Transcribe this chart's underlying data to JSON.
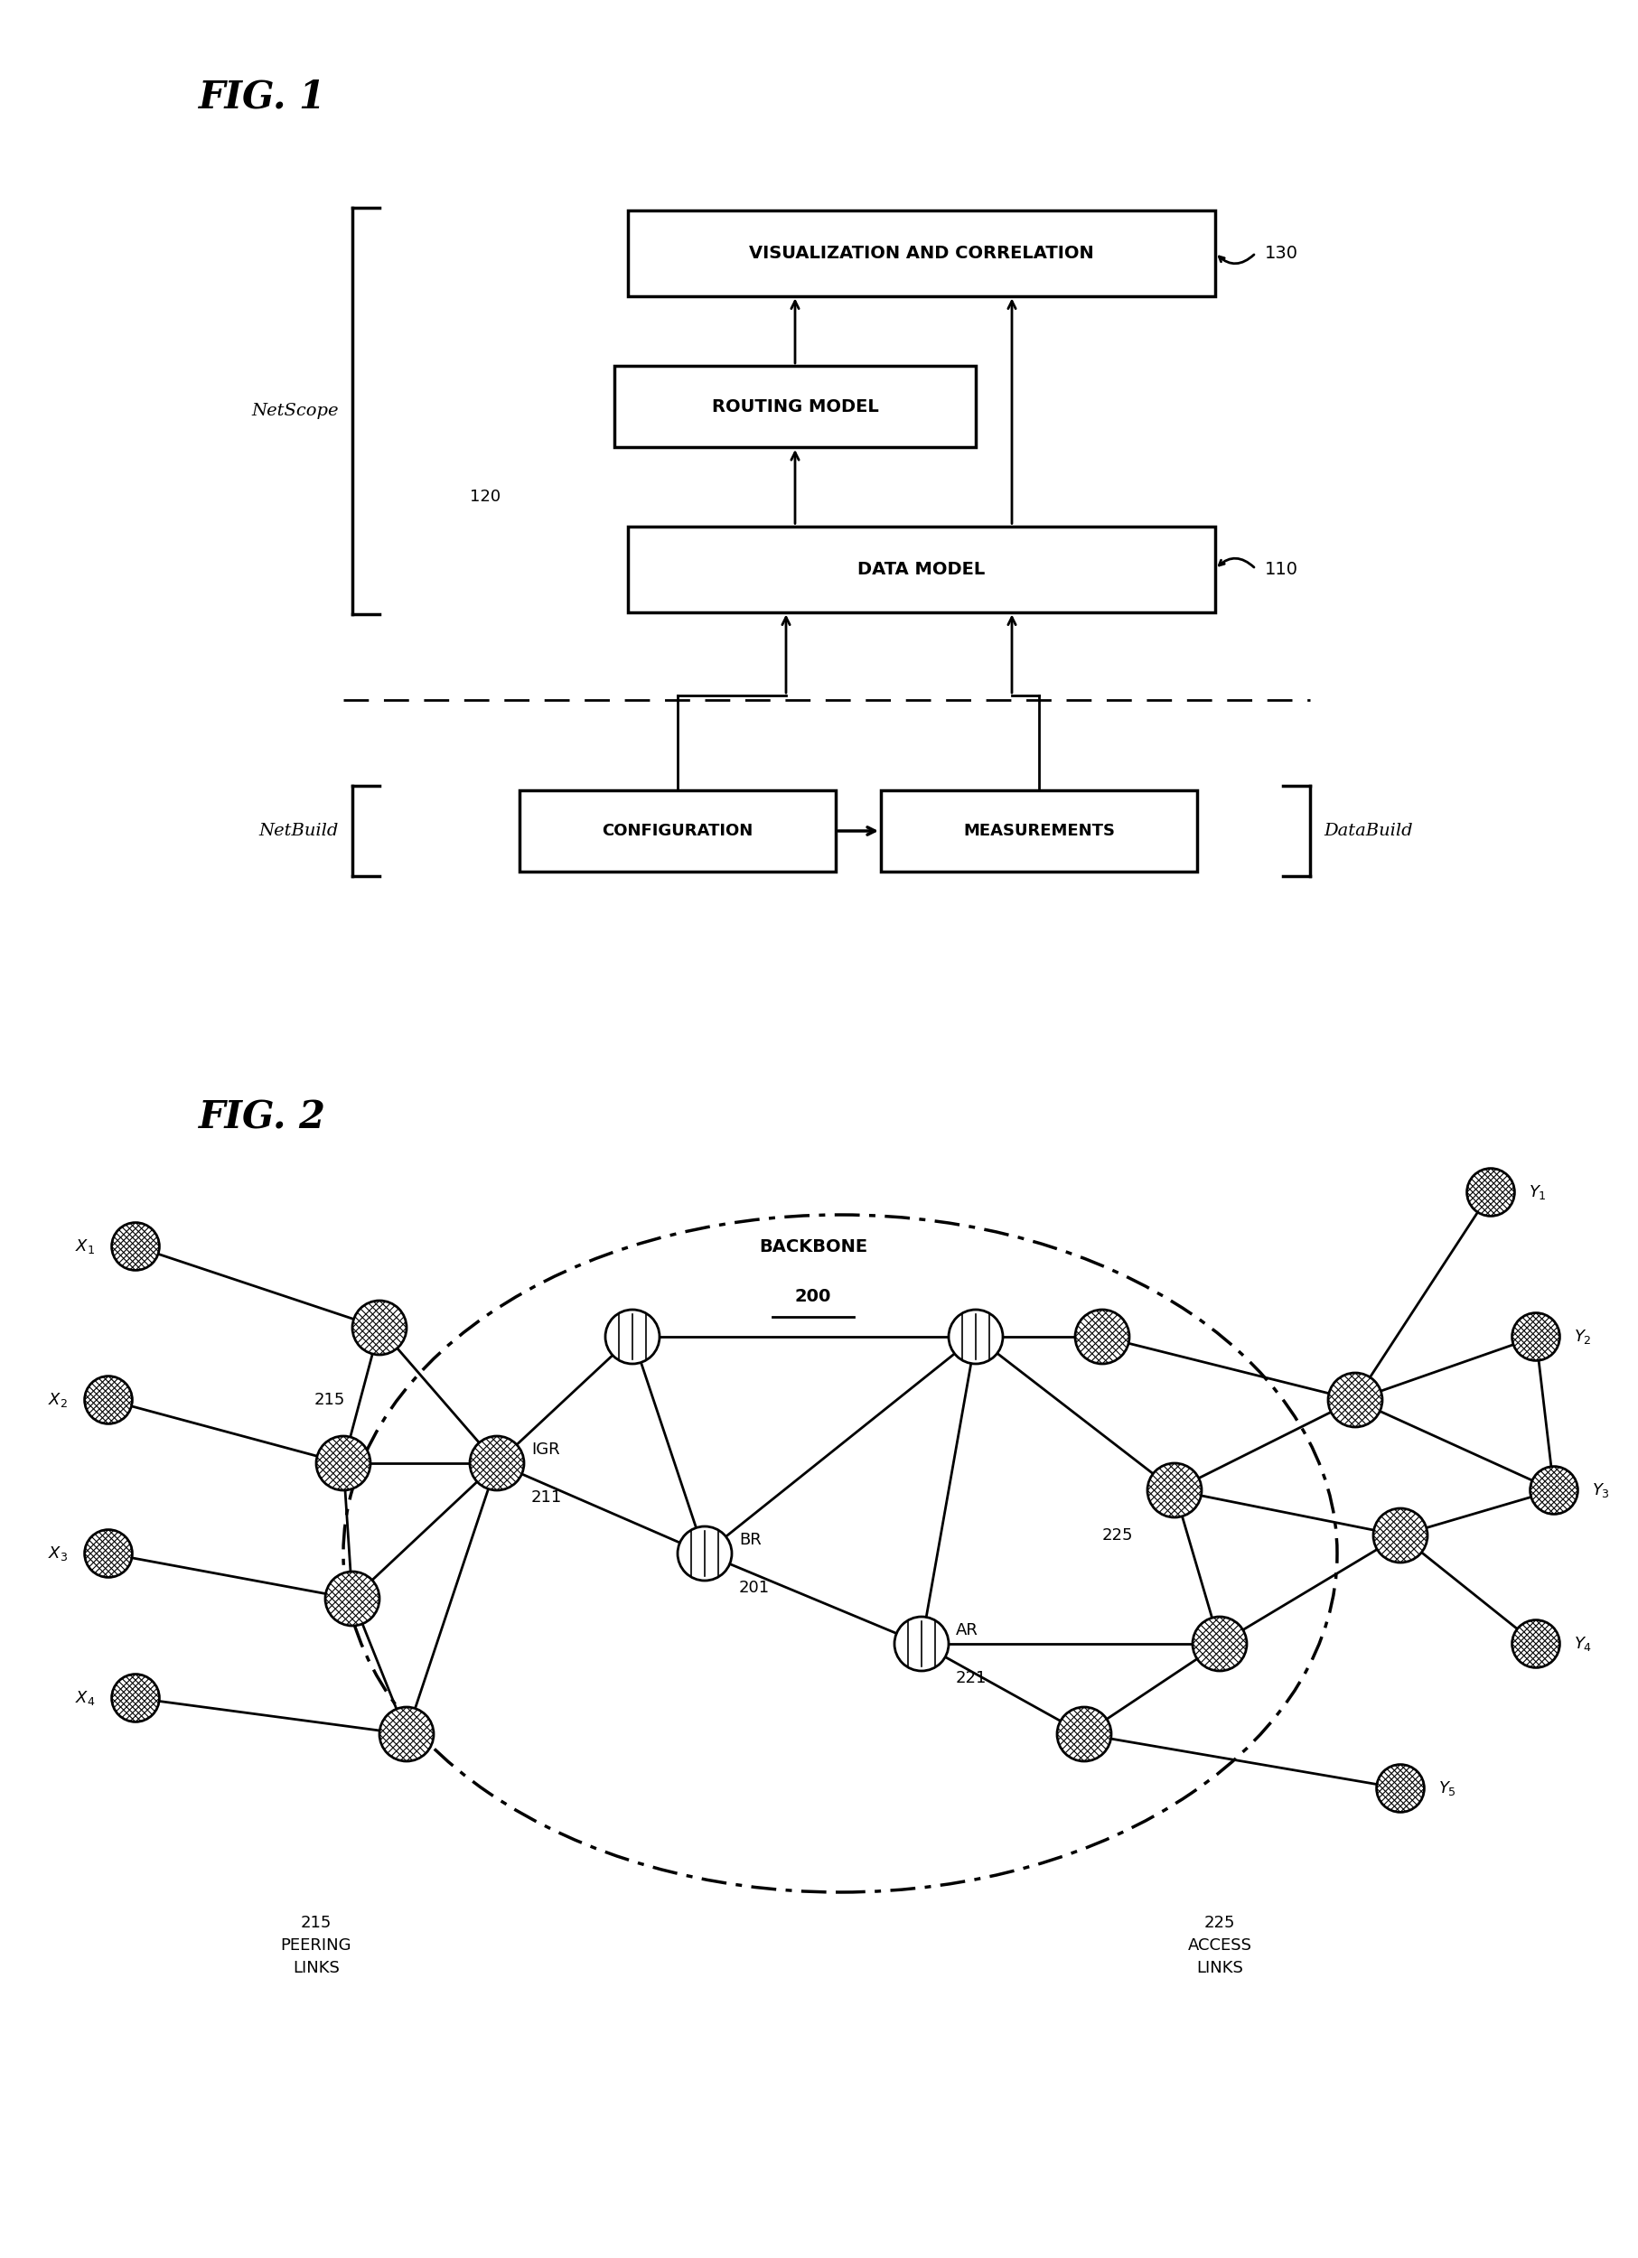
{
  "background_color": "#ffffff",
  "fig1_title": "FIG. 1",
  "fig2_title": "FIG. 2",
  "vis_label": "VISUALIZATION AND CORRELATION",
  "rm_label": "ROUTING MODEL",
  "dm_label": "DATA MODEL",
  "cfg_label": "CONFIGURATION",
  "meas_label": "MEASUREMENTS",
  "netscope_label": "NetScope",
  "netbuild_label": "NetBuild",
  "databuild_label": "DataBuild",
  "backbone_label": "BACKBONE",
  "backbone_num": "200",
  "ref_130": "130",
  "ref_110": "110",
  "ref_120": "120",
  "ref_211": "211",
  "ref_201": "201",
  "ref_221": "221",
  "ref_215": "215",
  "ref_225": "225",
  "label_215_peering": "215\nPEERING\nLINKS",
  "label_225_access": "225\nACCESS\nLINKS"
}
